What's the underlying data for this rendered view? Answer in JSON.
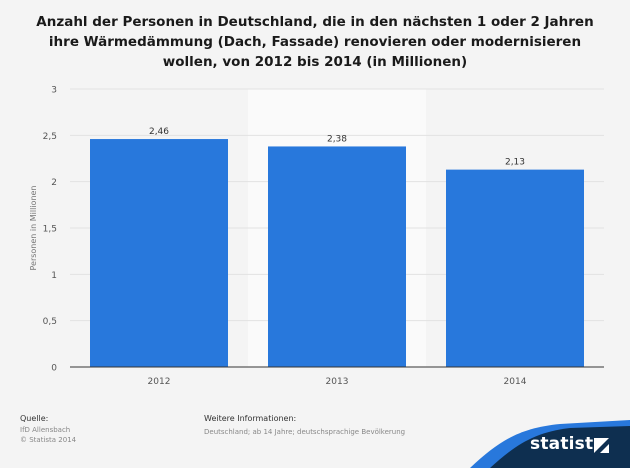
{
  "chart_data": {
    "type": "bar",
    "title": "Anzahl der Personen in Deutschland, die in den nächsten 1 oder 2 Jahren ihre Wärmedämmung (Dach, Fassade) renovieren oder modernisieren wollen, von 2012 bis 2014 (in Millionen)",
    "categories": [
      "2012",
      "2013",
      "2014"
    ],
    "values": [
      2.46,
      2.38,
      2.13
    ],
    "value_labels": [
      "2,46",
      "2,38",
      "2,13"
    ],
    "xlabel": "",
    "ylabel": "Personen in Millionen",
    "ylim": [
      0,
      3
    ],
    "yticks": [
      0,
      0.5,
      1,
      1.5,
      2,
      2.5,
      3
    ],
    "ytick_labels": [
      "0",
      "0,5",
      "1",
      "1,5",
      "2",
      "2,5",
      "3"
    ],
    "grid": true,
    "bar_color": "#2878dc",
    "highlight_category": "2013"
  },
  "footer": {
    "source_label": "Quelle:",
    "source_line1": "IfD Allensbach",
    "source_line2": "© Statista 2014",
    "info_label": "Weitere Informationen:",
    "info_text": "Deutschland; ab 14 Jahre; deutschsprachige Bevölkerung"
  },
  "branding": {
    "logo_text": "statista",
    "band_color": "#0e2f50",
    "accent_color": "#2878dc"
  }
}
